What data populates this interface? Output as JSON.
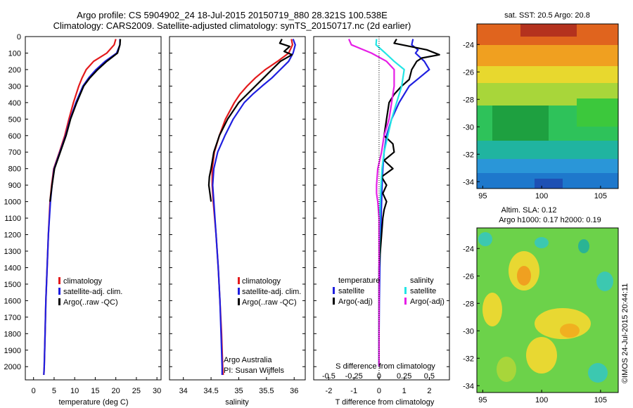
{
  "header": {
    "line1": "Argo profile: CS 5904902_24 18-Jul-2015 20150719_880 28.321S 100.538E",
    "line2": "Climatology: CARS2009. Satellite-adjusted climatology: synTS_20150717.nc (2d earlier)"
  },
  "colors": {
    "climatology": "#e31a1c",
    "satellite": "#1f1fe0",
    "argo": "#000000",
    "satellite_s": "#22e5e5",
    "argo_s": "#e61ee6"
  },
  "depth_ticks": [
    "0",
    "100",
    "200",
    "300",
    "400",
    "500",
    "600",
    "700",
    "800",
    "900",
    "1000",
    "1100",
    "1200",
    "1300",
    "1400",
    "1500",
    "1600",
    "1700",
    "1800",
    "1900",
    "2000"
  ],
  "chart_data": [
    {
      "type": "line",
      "id": "temperature",
      "xlabel": "temperature (deg C)",
      "ylabel": "",
      "xlim": [
        -2,
        31
      ],
      "ylim": [
        2080,
        0
      ],
      "x_ticks": [
        "0",
        "5",
        "10",
        "15",
        "20",
        "25",
        "30"
      ],
      "legend": [
        "climatology",
        "satellite-adj. clim.",
        "Argo(..raw -QC)"
      ],
      "series": [
        {
          "name": "climatology",
          "color": "climatology",
          "depth": [
            15,
            50,
            100,
            150,
            200,
            250,
            300,
            400,
            500,
            600,
            700,
            800,
            900,
            1000,
            1200,
            1400,
            1600,
            1800,
            2000,
            2050
          ],
          "values": [
            20.0,
            19.6,
            17.8,
            14.6,
            12.8,
            11.8,
            11.0,
            9.7,
            8.6,
            7.6,
            6.3,
            4.9,
            4.4,
            4.0,
            3.6,
            3.3,
            3.0,
            2.8,
            2.6,
            2.5
          ]
        },
        {
          "name": "satellite-adj. clim.",
          "color": "satellite",
          "depth": [
            15,
            50,
            100,
            150,
            200,
            250,
            300,
            400,
            500,
            600,
            700,
            800,
            900,
            1000,
            1200,
            1400,
            1600,
            1800,
            2000,
            2050
          ],
          "values": [
            21.0,
            21.0,
            20.2,
            17.4,
            15.2,
            13.4,
            12.0,
            10.3,
            8.9,
            7.8,
            6.4,
            5.0,
            4.5,
            4.1,
            3.6,
            3.3,
            3.0,
            2.8,
            2.6,
            2.5
          ]
        },
        {
          "name": "Argo(..raw -QC)",
          "color": "argo",
          "depth": [
            15,
            50,
            100,
            150,
            200,
            250,
            300,
            400,
            500,
            600,
            700,
            800,
            900,
            1000
          ],
          "values": [
            21.1,
            21.0,
            20.4,
            17.8,
            15.6,
            13.7,
            12.2,
            10.5,
            9.0,
            7.9,
            6.5,
            5.1,
            4.5,
            4.0
          ]
        }
      ]
    },
    {
      "type": "line",
      "id": "salinity",
      "xlabel": "salinity",
      "ylabel": "",
      "xlim": [
        33.75,
        36.2
      ],
      "ylim": [
        2080,
        0
      ],
      "x_ticks": [
        "34",
        "34.5",
        "35",
        "35.5",
        "36"
      ],
      "legend": [
        "climatology",
        "satellite-adj. clim.",
        "Argo(..raw -QC)"
      ],
      "annotation": [
        "Argo Australia",
        "PI: Susan Wijffels"
      ],
      "series": [
        {
          "name": "climatology",
          "color": "climatology",
          "depth": [
            15,
            50,
            100,
            150,
            200,
            250,
            300,
            350,
            400,
            500,
            600,
            700,
            800,
            900,
            1000,
            1200,
            1400,
            1600,
            1800,
            2000,
            2050
          ],
          "values": [
            35.95,
            35.97,
            35.9,
            35.7,
            35.48,
            35.3,
            35.15,
            35.02,
            34.92,
            34.76,
            34.65,
            34.56,
            34.52,
            34.52,
            34.54,
            34.59,
            34.63,
            34.66,
            34.69,
            34.71,
            34.72
          ]
        },
        {
          "name": "satellite-adj. clim.",
          "color": "satellite",
          "depth": [
            15,
            50,
            100,
            150,
            200,
            250,
            300,
            350,
            400,
            500,
            600,
            700,
            800,
            900,
            1000,
            1200,
            1400,
            1600,
            1800,
            2000,
            2050
          ],
          "values": [
            35.98,
            36.02,
            35.98,
            35.9,
            35.75,
            35.6,
            35.42,
            35.25,
            35.1,
            34.9,
            34.75,
            34.62,
            34.55,
            34.53,
            34.55,
            34.59,
            34.63,
            34.66,
            34.68,
            34.7,
            34.7
          ]
        },
        {
          "name": "Argo(..raw -QC)",
          "color": "argo",
          "depth": [
            15,
            40,
            60,
            90,
            110,
            150,
            200,
            250,
            300,
            350,
            400,
            500,
            600,
            700,
            800,
            850,
            900,
            950,
            1000
          ],
          "values": [
            35.78,
            35.74,
            35.92,
            35.82,
            35.96,
            35.75,
            35.6,
            35.45,
            35.3,
            35.15,
            35.0,
            34.8,
            34.65,
            34.55,
            34.5,
            34.47,
            34.46,
            34.48,
            34.5
          ]
        }
      ]
    },
    {
      "type": "line",
      "id": "difference",
      "xlabel": "T difference from climatology",
      "title": "S difference from climatology",
      "xlim": [
        -2.6,
        2.8
      ],
      "ylim": [
        2080,
        0
      ],
      "x_ticks": [
        "-2",
        "-1",
        "0",
        "1",
        "2"
      ],
      "top_ticks": [
        "-0.5",
        "-0.25",
        "0",
        "0.25",
        "0.5"
      ],
      "legend_groups": [
        "temperature",
        "salinity"
      ],
      "legend": [
        "satellite",
        "Argo(-adj)",
        "satellite",
        "Argo(-adj)"
      ],
      "series": [
        {
          "name": "temperature satellite",
          "color": "satellite",
          "depth": [
            15,
            50,
            80,
            100,
            150,
            200,
            250,
            300,
            400,
            500,
            600,
            700,
            800,
            900,
            1000,
            1100,
            1200,
            1400,
            1600,
            1800,
            2000
          ],
          "values": [
            1.35,
            1.3,
            1.55,
            1.45,
            1.8,
            2.0,
            1.6,
            1.2,
            0.8,
            0.5,
            0.3,
            0.2,
            0.15,
            0.12,
            0.1,
            0.08,
            0.06,
            0.03,
            0.01,
            0.0,
            0.0
          ]
        },
        {
          "name": "temperature Argo(-adj)",
          "color": "argo",
          "depth": [
            15,
            40,
            80,
            110,
            130,
            150,
            200,
            260,
            300,
            350,
            400,
            500,
            600,
            650,
            700,
            750,
            800,
            850,
            900,
            950,
            1000,
            1050,
            1100,
            1200,
            1300,
            1400,
            1600,
            1800,
            2000
          ],
          "values": [
            0.7,
            0.6,
            1.9,
            2.4,
            1.7,
            1.5,
            1.3,
            1.2,
            0.9,
            0.6,
            0.4,
            0.3,
            0.2,
            0.55,
            0.6,
            0.2,
            0.55,
            0.1,
            0.3,
            0.15,
            0.3,
            0.2,
            0.15,
            0.1,
            0.05,
            0.0,
            0.0,
            0.0,
            0.0
          ]
        },
        {
          "name": "salinity satellite",
          "color": "satellite_s",
          "depth": [
            15,
            50,
            100,
            150,
            200,
            300,
            400,
            500,
            600,
            700,
            800,
            900,
            1000,
            1100,
            1200,
            1400,
            1600,
            1800,
            2000
          ],
          "values": [
            -0.1,
            -0.12,
            0.25,
            0.6,
            1.0,
            0.9,
            0.7,
            0.5,
            0.35,
            0.2,
            0.12,
            0.08,
            0.05,
            0.03,
            0.02,
            0.0,
            0.0,
            0.0,
            0.0
          ]
        },
        {
          "name": "salinity Argo(-adj)",
          "color": "argo_s",
          "depth": [
            15,
            50,
            100,
            150,
            200,
            300,
            400,
            500,
            600,
            700,
            800,
            900,
            950,
            1000,
            1100,
            1200,
            1400,
            1600,
            1800,
            2000
          ],
          "values": [
            -1.2,
            -1.1,
            -0.3,
            0.3,
            0.6,
            0.6,
            0.5,
            0.4,
            0.2,
            0.1,
            -0.05,
            -0.1,
            -0.1,
            -0.05,
            0.0,
            0.0,
            0.0,
            0.0,
            0.0,
            0.0
          ]
        }
      ]
    },
    {
      "type": "heatmap",
      "id": "sst_map",
      "title": "sat. SST: 20.5 Argo: 20.8",
      "x_ticks": [
        "95",
        "100",
        "105"
      ],
      "y_ticks": [
        "-24",
        "-26",
        "-28",
        "-30",
        "-32",
        "-34"
      ],
      "xlim": [
        94.5,
        106.5
      ],
      "ylim": [
        -34.5,
        -22.5
      ],
      "marker": [
        100.538,
        -28.321
      ]
    },
    {
      "type": "heatmap",
      "id": "sla_map",
      "title": "Altim. SLA: 0.12",
      "subtitle": "Argo h1000: 0.17 h2000: 0.19",
      "x_ticks": [
        "95",
        "100",
        "105"
      ],
      "y_ticks": [
        "-24",
        "-26",
        "-28",
        "-30",
        "-32",
        "-34"
      ],
      "xlim": [
        94.5,
        106.5
      ],
      "ylim": [
        -34.5,
        -22.5
      ],
      "marker": [
        100.538,
        -28.321
      ]
    }
  ],
  "footer": {
    "stamp": "©IMOS 24-Jul-2015 20:44:11"
  }
}
